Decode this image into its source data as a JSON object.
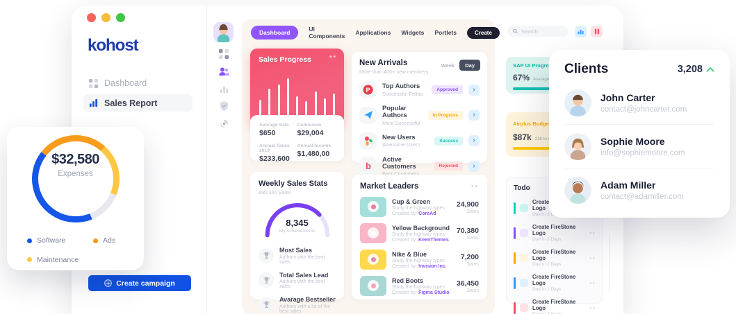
{
  "window": {
    "traffic_lights": {
      "red": "#f5655b",
      "yellow": "#f6bd3a",
      "green": "#43c645"
    }
  },
  "sidebar": {
    "logo": "kohost",
    "items": [
      {
        "label": "Dashboard",
        "icon": "grid-icon",
        "active": false
      },
      {
        "label": "Sales Report",
        "icon": "bar-chart-icon",
        "active": true
      }
    ],
    "create_campaign_label": "Create campaign"
  },
  "expenses_card": {
    "value": "$32,580",
    "label": "Expenses",
    "legend": [
      {
        "label": "Software",
        "color": "#1656e8"
      },
      {
        "label": "Ads",
        "color": "#f99b1d"
      },
      {
        "label": "Maintenance",
        "color": "#fdc645"
      }
    ],
    "chart_data": {
      "type": "pie",
      "title": "Expenses",
      "total": "$32,580",
      "segments": [
        {
          "label": "Ads",
          "color": "#f99b1d",
          "start_deg": 308,
          "end_deg": 402
        },
        {
          "label": "Maintenance",
          "color": "#fdc645",
          "start_deg": 42,
          "end_deg": 112
        },
        {
          "label": "Other",
          "color": "#e7e9ee",
          "start_deg": 112,
          "end_deg": 158
        },
        {
          "label": "Software",
          "color": "#1656e8",
          "start_deg": 158,
          "end_deg": 308
        }
      ]
    }
  },
  "topnav": {
    "tabs": [
      "Dashboard",
      "UI Components",
      "Applications",
      "Widgets",
      "Portlets"
    ],
    "create_label": "Create",
    "active_color": "#9155fd"
  },
  "search": {
    "placeholder": "Search"
  },
  "sales_progress": {
    "title": "Sales Progress",
    "bars_pct": [
      42,
      60,
      68,
      78,
      48,
      40,
      56,
      44,
      52
    ],
    "stats": [
      {
        "label": "Average Sale",
        "value": "$650"
      },
      {
        "label": "Comission",
        "value": "$29,004"
      },
      {
        "label": "Annual Taxes 2019",
        "value": "$233,600"
      },
      {
        "label": "Annual Income",
        "value": "$1,480,00"
      }
    ]
  },
  "new_arrivals": {
    "title": "New Arrivals",
    "subtitle": "More than 400+ new members",
    "toggle": {
      "week": "Week",
      "day": "Day"
    },
    "items": [
      {
        "icon": "top-authors-logo-icon",
        "title": "Top Authors",
        "subtitle": "Successful Fellas",
        "badge": "Approved",
        "badge_color": "#8950fc",
        "badge_bg": "#eee5ff"
      },
      {
        "icon": "paper-plane-icon",
        "title": "Popular Authors",
        "subtitle": "Most Successful",
        "badge": "In Progress",
        "badge_color": "#ffa800",
        "badge_bg": "#fff4de"
      },
      {
        "icon": "new-users-logo-icon",
        "title": "New Users",
        "subtitle": "Awesome Users",
        "badge": "Success",
        "badge_color": "#1bc5bd",
        "badge_bg": "#dcf6f5"
      },
      {
        "icon": "active-customers-logo-icon",
        "title": "Active Customers",
        "subtitle": "Best Customers",
        "badge": "Rejected",
        "badge_color": "#f64e60",
        "badge_bg": "#ffe2e5"
      }
    ]
  },
  "weekly_stats": {
    "title": "Weekly Sales Stats",
    "subtitle": "890,344 Sales",
    "gauge": {
      "value": "8,345",
      "label": "My Achievements",
      "percent": 76,
      "color": "#7b3ff2",
      "track": "#e9e0fb"
    },
    "items": [
      {
        "title": "Most Sales",
        "subtitle": "Authors with the best sales"
      },
      {
        "title": "Total Sales Lead",
        "subtitle": "Authors with the best sales"
      },
      {
        "title": "Avarage Bestseller",
        "subtitle": "Authors with a lot of the best sales"
      }
    ]
  },
  "market_leaders": {
    "title": "Market Leaders",
    "created_by_label": "Created by:",
    "unit": "Sales",
    "items": [
      {
        "title": "Cup & Green",
        "subtitle": "Study the highway types",
        "creator": "CoreAd",
        "creator_color": "#8950fc",
        "value": "24,900",
        "thumb": "#a5dfdb",
        "thumb_accent": "#f27ba0"
      },
      {
        "title": "Yellow Background",
        "subtitle": "Study the highway types",
        "creator": "KeenThemes",
        "creator_color": "#8950fc",
        "value": "70,380",
        "thumb": "#f9b6c6",
        "thumb_accent": "#ffffff"
      },
      {
        "title": "Nike & Blue",
        "subtitle": "Study the highway types",
        "creator": "Invision Inc.",
        "creator_color": "#8950fc",
        "value": "7,200",
        "thumb": "#ffd84d",
        "thumb_accent": "#e58bb1"
      },
      {
        "title": "Red Boots",
        "subtitle": "Study the highway types",
        "creator": "Figma Studio",
        "creator_color": "#8950fc",
        "value": "36,450",
        "thumb": "#a9d8d4",
        "thumb_accent": "#f4a6b8"
      }
    ]
  },
  "right_panel": {
    "progress_cards": [
      {
        "title": "SAP UI Progress",
        "title_color": "#13b2a5",
        "bg": "#ddf3ef",
        "value": "67%",
        "note": "Avarage",
        "fill": "88%",
        "fill_color": "#16bfb2"
      },
      {
        "title": "Airplus Budget",
        "title_color": "#ffa800",
        "bg": "#fdf3da",
        "value": "$87k",
        "note": "23k to spend",
        "fill": "62%",
        "fill_color": "#ffc700"
      }
    ],
    "todo": {
      "title": "Todo",
      "items": [
        {
          "title": "Create FireStone Logo",
          "due": "Due in 2 Days",
          "bar": "#06d6c9",
          "square": "#ccf7f3"
        },
        {
          "title": "Create FireStone Logo",
          "due": "Due in 2 Days",
          "bar": "#8950fc",
          "square": "#eee5ff"
        },
        {
          "title": "Create FireStone Logo",
          "due": "Due in 2 Days",
          "bar": "#ffa800",
          "square": "#fff4de"
        },
        {
          "title": "Create FireStone Logo",
          "due": "Due in 2 Days",
          "bar": "#3699ff",
          "square": "#e1f0ff"
        },
        {
          "title": "Create FireStone Logo",
          "due": "Due in 2 Days",
          "bar": "#f64e60",
          "square": "#ffe2e5"
        }
      ]
    }
  },
  "clients": {
    "title": "Clients",
    "count": "3,208",
    "trend_color": "#50cd89",
    "items": [
      {
        "name": "John Carter",
        "email": "contact@johncarter.com"
      },
      {
        "name": "Sophie Moore",
        "email": "info@sophiemoore.com"
      },
      {
        "name": "Adam Miller",
        "email": "contact@adamiller.com"
      }
    ]
  }
}
